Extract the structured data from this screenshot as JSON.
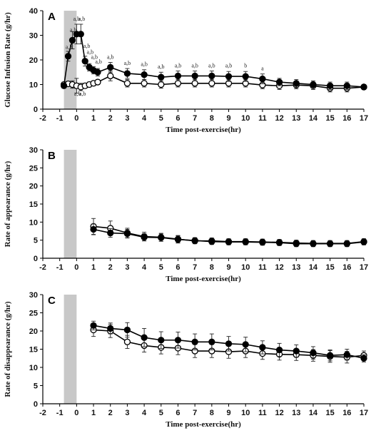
{
  "chart_data": [
    {
      "type": "line",
      "panel_label": "A",
      "ylabel": "Glucose Infusion Rate (g/hr)",
      "xlabel": "Time post-exercise(hr)",
      "xlim": [
        -2,
        17
      ],
      "ylim": [
        0,
        40
      ],
      "xticks": [
        "-2",
        "-1",
        "0",
        "1",
        "2",
        "3",
        "4",
        "5",
        "6",
        "7",
        "8",
        "9",
        "10",
        "11",
        "12",
        "13",
        "14",
        "15",
        "16",
        "17"
      ],
      "yticks": [
        "0",
        "10",
        "20",
        "30",
        "40"
      ],
      "shaded_region": [
        -0.75,
        0
      ],
      "series": [
        {
          "marker": "filled",
          "points": [
            {
              "x": -0.75,
              "y": 9.5,
              "err": 1
            },
            {
              "x": -0.5,
              "y": 21.5,
              "err": 2
            },
            {
              "x": -0.25,
              "y": 28,
              "err": 3.5
            },
            {
              "x": 0,
              "y": 30.5,
              "err": 4
            },
            {
              "x": 0.25,
              "y": 30.5,
              "err": 4
            },
            {
              "x": 0.5,
              "y": 19.5,
              "err": 2
            },
            {
              "x": 0.75,
              "y": 17,
              "err": 1.5
            },
            {
              "x": 1,
              "y": 15.8,
              "err": 1.5
            },
            {
              "x": 1.25,
              "y": 15,
              "err": 1.5
            },
            {
              "x": 2,
              "y": 17,
              "err": 2
            },
            {
              "x": 3,
              "y": 14.5,
              "err": 2
            },
            {
              "x": 4,
              "y": 14,
              "err": 2
            },
            {
              "x": 5,
              "y": 13,
              "err": 2
            },
            {
              "x": 6,
              "y": 13.5,
              "err": 2
            },
            {
              "x": 7,
              "y": 13.5,
              "err": 2
            },
            {
              "x": 8,
              "y": 13.5,
              "err": 2
            },
            {
              "x": 9,
              "y": 13.3,
              "err": 2
            },
            {
              "x": 10,
              "y": 13.3,
              "err": 2
            },
            {
              "x": 11,
              "y": 12.3,
              "err": 2
            },
            {
              "x": 12,
              "y": 11,
              "err": 1.5
            },
            {
              "x": 13,
              "y": 10.5,
              "err": 1.5
            },
            {
              "x": 14,
              "y": 10,
              "err": 1.5
            },
            {
              "x": 15,
              "y": 9.5,
              "err": 1.5
            },
            {
              "x": 16,
              "y": 9.5,
              "err": 1.5
            },
            {
              "x": 17,
              "y": 9,
              "err": 1
            }
          ]
        },
        {
          "marker": "open",
          "points": [
            {
              "x": -0.75,
              "y": 10,
              "err": 1
            },
            {
              "x": -0.5,
              "y": 10.3,
              "err": 1
            },
            {
              "x": -0.25,
              "y": 10,
              "err": 1.5
            },
            {
              "x": 0,
              "y": 9.5,
              "err": 3
            },
            {
              "x": 0.25,
              "y": 9,
              "err": 1.5
            },
            {
              "x": 0.5,
              "y": 9.5,
              "err": 1
            },
            {
              "x": 0.75,
              "y": 10,
              "err": 1
            },
            {
              "x": 1,
              "y": 10.5,
              "err": 1
            },
            {
              "x": 1.25,
              "y": 11,
              "err": 1
            },
            {
              "x": 2,
              "y": 13.5,
              "err": 2
            },
            {
              "x": 3,
              "y": 10.5,
              "err": 1.5
            },
            {
              "x": 4,
              "y": 10.5,
              "err": 1.5
            },
            {
              "x": 5,
              "y": 10,
              "err": 1.5
            },
            {
              "x": 6,
              "y": 10.5,
              "err": 1.5
            },
            {
              "x": 7,
              "y": 10.5,
              "err": 1.5
            },
            {
              "x": 8,
              "y": 10.5,
              "err": 1.5
            },
            {
              "x": 9,
              "y": 10.5,
              "err": 1.5
            },
            {
              "x": 10,
              "y": 10.5,
              "err": 1.5
            },
            {
              "x": 11,
              "y": 9.8,
              "err": 1.5
            },
            {
              "x": 12,
              "y": 9.5,
              "err": 1.5
            },
            {
              "x": 13,
              "y": 9.8,
              "err": 1.5
            },
            {
              "x": 14,
              "y": 9.5,
              "err": 1.5
            },
            {
              "x": 15,
              "y": 8.5,
              "err": 1.5
            },
            {
              "x": 16,
              "y": 8.5,
              "err": 1.5
            },
            {
              "x": 17,
              "y": 9,
              "err": 1
            }
          ]
        }
      ],
      "annotations": [
        {
          "text": "a,b",
          "x": -0.45,
          "y": 24.5
        },
        {
          "text": "a,b",
          "x": -0.2,
          "y": 31.5
        },
        {
          "text": "a,b",
          "x": 0,
          "y": 36
        },
        {
          "text": "a,b",
          "x": 0.3,
          "y": 36
        },
        {
          "text": "a,b",
          "x": 0.6,
          "y": 25
        },
        {
          "text": "a,b",
          "x": 0.8,
          "y": 22.5
        },
        {
          "text": "a,b",
          "x": 1.05,
          "y": 20.5
        },
        {
          "text": "a,b",
          "x": 1.3,
          "y": 18.5
        },
        {
          "text": "a,b",
          "x": 2,
          "y": 20.5
        },
        {
          "text": "a,b",
          "x": 3,
          "y": 18
        },
        {
          "text": "a,b",
          "x": 4,
          "y": 17.5
        },
        {
          "text": "a,b",
          "x": 5,
          "y": 16.5
        },
        {
          "text": "a,b",
          "x": 6,
          "y": 17
        },
        {
          "text": "a,b",
          "x": 7,
          "y": 17
        },
        {
          "text": "a,b",
          "x": 8,
          "y": 17
        },
        {
          "text": "a,b",
          "x": 9,
          "y": 17
        },
        {
          "text": "b",
          "x": 10,
          "y": 17
        },
        {
          "text": "a",
          "x": 11,
          "y": 15.8
        },
        {
          "text": "a,b",
          "x": 0.05,
          "y": 5.5
        },
        {
          "text": "a,b",
          "x": 0.35,
          "y": 5.5
        }
      ]
    },
    {
      "type": "line",
      "panel_label": "B",
      "ylabel": "Rate of appearance (g/hr)",
      "xlabel": "Time post-exercise(hr)",
      "xlim": [
        -2,
        17
      ],
      "ylim": [
        0,
        30
      ],
      "xticks": [
        "-2",
        "-1",
        "0",
        "1",
        "2",
        "3",
        "4",
        "5",
        "6",
        "7",
        "8",
        "9",
        "10",
        "11",
        "12",
        "13",
        "14",
        "15",
        "16",
        "17"
      ],
      "yticks": [
        "0",
        "5",
        "10",
        "15",
        "20",
        "25",
        "30"
      ],
      "shaded_region": [
        -0.75,
        0
      ],
      "series": [
        {
          "marker": "filled",
          "points": [
            {
              "x": 1,
              "y": 8,
              "err": 1.5
            },
            {
              "x": 2,
              "y": 7,
              "err": 1.2
            },
            {
              "x": 3,
              "y": 6.8,
              "err": 1.2
            },
            {
              "x": 4,
              "y": 5.8,
              "err": 1
            },
            {
              "x": 5,
              "y": 5.7,
              "err": 1
            },
            {
              "x": 6,
              "y": 5.2,
              "err": 1
            },
            {
              "x": 7,
              "y": 4.9,
              "err": 0.8
            },
            {
              "x": 8,
              "y": 4.6,
              "err": 0.8
            },
            {
              "x": 9,
              "y": 4.5,
              "err": 0.8
            },
            {
              "x": 10,
              "y": 4.5,
              "err": 0.8
            },
            {
              "x": 11,
              "y": 4.4,
              "err": 0.8
            },
            {
              "x": 12,
              "y": 4.3,
              "err": 0.8
            },
            {
              "x": 13,
              "y": 4,
              "err": 0.8
            },
            {
              "x": 14,
              "y": 4,
              "err": 0.8
            },
            {
              "x": 15,
              "y": 4,
              "err": 0.8
            },
            {
              "x": 16,
              "y": 4,
              "err": 0.8
            },
            {
              "x": 17,
              "y": 4.5,
              "err": 0.8
            }
          ]
        },
        {
          "marker": "open",
          "points": [
            {
              "x": 1,
              "y": 8.8,
              "err": 2.2
            },
            {
              "x": 2,
              "y": 8.3,
              "err": 2
            },
            {
              "x": 3,
              "y": 7,
              "err": 1.3
            },
            {
              "x": 4,
              "y": 6,
              "err": 1.2
            },
            {
              "x": 5,
              "y": 5.8,
              "err": 1.1
            },
            {
              "x": 6,
              "y": 5.3,
              "err": 1
            },
            {
              "x": 7,
              "y": 4.8,
              "err": 0.8
            },
            {
              "x": 8,
              "y": 4.8,
              "err": 0.8
            },
            {
              "x": 9,
              "y": 4.6,
              "err": 0.8
            },
            {
              "x": 10,
              "y": 4.6,
              "err": 0.8
            },
            {
              "x": 11,
              "y": 4.5,
              "err": 0.8
            },
            {
              "x": 12,
              "y": 4.4,
              "err": 0.8
            },
            {
              "x": 13,
              "y": 4.2,
              "err": 0.8
            },
            {
              "x": 14,
              "y": 4.1,
              "err": 0.8
            },
            {
              "x": 15,
              "y": 4.1,
              "err": 0.8
            },
            {
              "x": 16,
              "y": 4.1,
              "err": 0.8
            },
            {
              "x": 17,
              "y": 4.6,
              "err": 0.8
            }
          ]
        }
      ]
    },
    {
      "type": "line",
      "panel_label": "C",
      "ylabel": "Rate of disappearance (g/hr)",
      "xlabel": "Time post-exercise(hr)",
      "xlim": [
        -2,
        17
      ],
      "ylim": [
        0,
        30
      ],
      "xticks": [
        "-2",
        "-1",
        "0",
        "1",
        "2",
        "3",
        "4",
        "5",
        "6",
        "7",
        "8",
        "9",
        "10",
        "11",
        "12",
        "13",
        "14",
        "15",
        "16",
        "17"
      ],
      "yticks": [
        "0",
        "5",
        "10",
        "15",
        "20",
        "25",
        "30"
      ],
      "shaded_region": [
        -0.75,
        0
      ],
      "series": [
        {
          "marker": "filled",
          "points": [
            {
              "x": 1,
              "y": 21.5,
              "err": 1.2
            },
            {
              "x": 2,
              "y": 20.7,
              "err": 1.5
            },
            {
              "x": 3,
              "y": 20.3,
              "err": 2
            },
            {
              "x": 4,
              "y": 18.2,
              "err": 2.5
            },
            {
              "x": 5,
              "y": 17.5,
              "err": 2.3
            },
            {
              "x": 6,
              "y": 17.5,
              "err": 2.2
            },
            {
              "x": 7,
              "y": 17,
              "err": 2.2
            },
            {
              "x": 8,
              "y": 17,
              "err": 2.2
            },
            {
              "x": 9,
              "y": 16.5,
              "err": 2
            },
            {
              "x": 10,
              "y": 16.3,
              "err": 2
            },
            {
              "x": 11,
              "y": 15.5,
              "err": 1.8
            },
            {
              "x": 12,
              "y": 14.8,
              "err": 1.8
            },
            {
              "x": 13,
              "y": 14.5,
              "err": 1.7
            },
            {
              "x": 14,
              "y": 14,
              "err": 1.7
            },
            {
              "x": 15,
              "y": 13.3,
              "err": 1.5
            },
            {
              "x": 16,
              "y": 13.5,
              "err": 1.5
            },
            {
              "x": 17,
              "y": 12.5,
              "err": 1
            }
          ]
        },
        {
          "marker": "open",
          "points": [
            {
              "x": 1,
              "y": 20.3,
              "err": 1.8
            },
            {
              "x": 2,
              "y": 20,
              "err": 1.8
            },
            {
              "x": 3,
              "y": 17,
              "err": 1.8
            },
            {
              "x": 4,
              "y": 16,
              "err": 1.8
            },
            {
              "x": 5,
              "y": 15.5,
              "err": 1.8
            },
            {
              "x": 6,
              "y": 15.3,
              "err": 1.8
            },
            {
              "x": 7,
              "y": 14.5,
              "err": 1.8
            },
            {
              "x": 8,
              "y": 14.5,
              "err": 1.8
            },
            {
              "x": 9,
              "y": 14.3,
              "err": 1.8
            },
            {
              "x": 10,
              "y": 14.5,
              "err": 1.8
            },
            {
              "x": 11,
              "y": 13.8,
              "err": 1.6
            },
            {
              "x": 12,
              "y": 13.6,
              "err": 1.6
            },
            {
              "x": 13,
              "y": 13.5,
              "err": 1.6
            },
            {
              "x": 14,
              "y": 13.3,
              "err": 1.6
            },
            {
              "x": 15,
              "y": 13,
              "err": 1.6
            },
            {
              "x": 16,
              "y": 12.8,
              "err": 1.6
            },
            {
              "x": 17,
              "y": 13.3,
              "err": 1.2
            }
          ]
        }
      ]
    }
  ]
}
